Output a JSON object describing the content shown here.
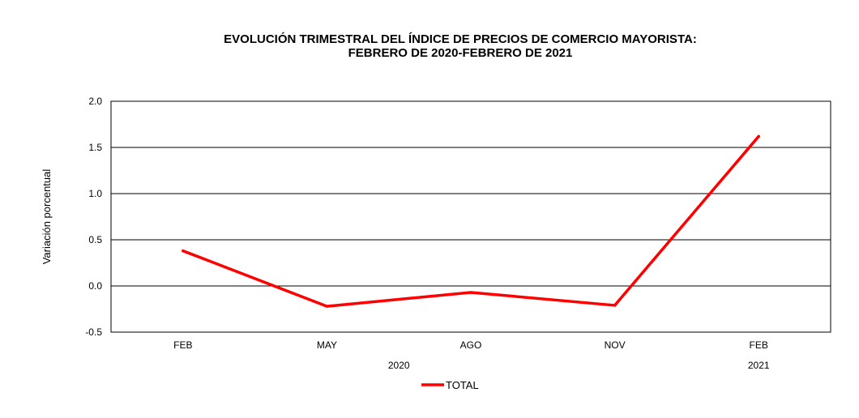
{
  "chart_data": {
    "type": "line",
    "title": "EVOLUCIÓN TRIMESTRAL DEL ÍNDICE DE PRECIOS DE COMERCIO MAYORISTA:",
    "subtitle": "FEBRERO DE 2020-FEBRERO DE 2021",
    "ylabel": "Variación porcentual",
    "xlabel": "",
    "categories": [
      "FEB",
      "MAY",
      "AGO",
      "NOV",
      "FEB"
    ],
    "year_labels": [
      "2020",
      "2021"
    ],
    "ylim": [
      -0.5,
      2.0
    ],
    "yticks": [
      "2.0",
      "1.5",
      "1.0",
      "0.5",
      "0.0",
      "-0.5"
    ],
    "grid": true,
    "legend_position": "bottom",
    "series": [
      {
        "name": "TOTAL",
        "color": "#ff0000",
        "values": [
          0.38,
          -0.22,
          -0.07,
          -0.21,
          1.62
        ]
      }
    ]
  }
}
